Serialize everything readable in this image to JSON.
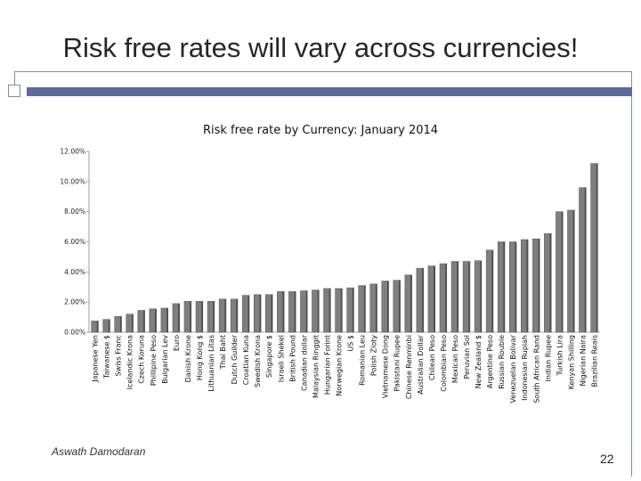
{
  "slide": {
    "title": "Risk free rates will vary across currencies!",
    "author": "Aswath Damodaran",
    "page_number": "22",
    "accent_color": "#5b6c9a"
  },
  "chart_data": {
    "type": "bar",
    "title": "Risk free rate by Currency: January 2014",
    "xlabel": "",
    "ylabel": "",
    "ylim": [
      0,
      0.12
    ],
    "yticks": [
      0,
      0.02,
      0.04,
      0.06,
      0.08,
      0.1,
      0.12
    ],
    "ytick_labels": [
      "0.00%",
      "2.00%",
      "4.00%",
      "6.00%",
      "8.00%",
      "10.00%",
      "12.00%"
    ],
    "grid": false,
    "bar_color": "#7f7f7f",
    "categories": [
      "Japanese Yen",
      "Taiwanese $",
      "Swiss Franc",
      "Icelandic Krona",
      "Czech Koruna",
      "Phillipine Peso",
      "Bulgarian Lev",
      "Euro",
      "Danish Krone",
      "Hong Kong $",
      "Lithuanian Litas",
      "Thai Baht",
      "Dutch Guilder",
      "Croatian Kuna",
      "Swedish Krona",
      "Singapore $",
      "Israeli Shekel",
      "British Pound",
      "Canadian dollar",
      "Malaysian Ringgit",
      "Hungarian Forint",
      "Norwegian Krone",
      "US $",
      "Romanian Leu",
      "Polish Zloty",
      "Vietnamese Dong",
      "Pakistani Rupee",
      "Chinese Renminbi",
      "Australian Dollar",
      "Chilean Peso",
      "Colombian Peso",
      "Mexican Peso",
      "Peruvian Sol",
      "New Zealand $",
      "Argentine Peso",
      "Russian Rouble",
      "Venezuelan Bolivar",
      "Indonesian Rupiah",
      "South African Rand",
      "Indian Rupee",
      "Turkish Lira",
      "Kenyan Shilling",
      "Nigerian Naira",
      "Brazilian Reais"
    ],
    "values": [
      0.0075,
      0.0085,
      0.0105,
      0.012,
      0.0145,
      0.0155,
      0.016,
      0.019,
      0.0205,
      0.0205,
      0.0205,
      0.022,
      0.022,
      0.0245,
      0.025,
      0.025,
      0.027,
      0.027,
      0.0275,
      0.028,
      0.029,
      0.029,
      0.0295,
      0.031,
      0.032,
      0.034,
      0.0345,
      0.038,
      0.0425,
      0.044,
      0.0455,
      0.047,
      0.047,
      0.0475,
      0.0545,
      0.06,
      0.06,
      0.0615,
      0.062,
      0.0655,
      0.08,
      0.081,
      0.096,
      0.112
    ]
  }
}
